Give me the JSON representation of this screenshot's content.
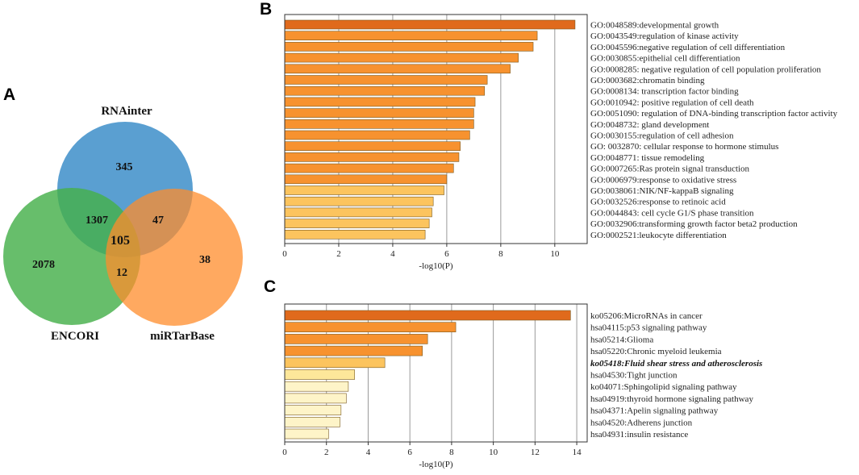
{
  "colors": {
    "rnainter": "#3d8ec9",
    "encori": "#46b04a",
    "mirtarbase": "#ff8c2b",
    "grid": "#9a9a9a",
    "frame": "#333333"
  },
  "panels": {
    "a": "A",
    "b": "B",
    "c": "C"
  },
  "venn": {
    "sets": [
      "RNAinter",
      "ENCORI",
      "miRTarBase"
    ],
    "counts": {
      "rnainter_only": "345",
      "encori_only": "2078",
      "mirtarbase_only": "38",
      "rnainter_encori": "1307",
      "rnainter_mirtarbase": "47",
      "encori_mirtarbase": "12",
      "all_three": "105"
    }
  },
  "chart_data": [
    {
      "type": "bar",
      "orientation": "horizontal",
      "panel": "B",
      "xlabel": "-log10(P)",
      "xlim": [
        0,
        11.2
      ],
      "xticks": [
        0,
        2,
        4,
        6,
        8,
        10
      ],
      "categories": [
        "GO:0048589:developmental growth",
        "GO:0043549:regulation of kinase activity",
        "GO:0045596:negative regulation of cell differentiation",
        "GO:0030855:epithelial cell differentiation",
        "GO:0008285: negative regulation of cell population proliferation",
        "GO:0003682:chromatin binding",
        "GO:0008134: transcription factor binding",
        "GO:0010942: positive regulation of cell death",
        "GO:0051090: regulation of DNA-binding transcription factor activity",
        "GO:0048732: gland development",
        "GO:0030155:regulation of cell adhesion",
        "GO: 0032870: cellular response to hormone stimulus",
        "GO:0048771: tissue remodeling",
        "GO:0007265:Ras protein signal transduction",
        "GO:0006979:response to oxidative stress",
        "GO:0038061:NIK/NF-kappaB signaling",
        "GO:0032526:response to retinoic acid",
        "GO:0044843: cell cycle G1/S phase transition",
        "GO:0032906:transforming growth factor beta2 production",
        "GO:0002521:leukocyte differentiation"
      ],
      "values": [
        10.75,
        9.35,
        9.2,
        8.65,
        8.35,
        7.5,
        7.4,
        7.05,
        7.0,
        7.0,
        6.85,
        6.5,
        6.45,
        6.25,
        6.0,
        5.9,
        5.5,
        5.45,
        5.35,
        5.2
      ],
      "colors": [
        "#e06a1c",
        "#f7922f",
        "#f7922f",
        "#f7922f",
        "#f7922f",
        "#f7922f",
        "#f7922f",
        "#f7922f",
        "#f7922f",
        "#f7922f",
        "#f7922f",
        "#f7922f",
        "#f7922f",
        "#f7922f",
        "#f7922f",
        "#fcc45e",
        "#fcc45e",
        "#fcc45e",
        "#fcc45e",
        "#fcc45e"
      ]
    },
    {
      "type": "bar",
      "orientation": "horizontal",
      "panel": "C",
      "xlabel": "-log10(P)",
      "xlim": [
        0,
        14.5
      ],
      "xticks": [
        0,
        2,
        4,
        6,
        8,
        10,
        12,
        14
      ],
      "categories": [
        "ko05206:MicroRNAs in cancer",
        "hsa04115:p53 signaling pathway",
        "hsa05214:Glioma",
        "hsa05220:Chronic myeloid leukemia",
        "ko05418:Fluid shear stress and atherosclerosis",
        "hsa04530:Tight junction",
        "ko04071:Sphingolipid signaling pathway",
        "hsa04919:thyroid hormone signaling pathway",
        "hsa04371:Apelin signaling pathway",
        "hsa04520:Adherens junction",
        "hsa04931:insulin resistance"
      ],
      "emphasized": [
        4
      ],
      "values": [
        13.7,
        8.2,
        6.85,
        6.6,
        4.8,
        3.35,
        3.05,
        2.95,
        2.7,
        2.65,
        2.1
      ],
      "colors": [
        "#e06a1c",
        "#f7922f",
        "#f7922f",
        "#f7922f",
        "#fcc45e",
        "#fde79a",
        "#fef4c8",
        "#fef4c8",
        "#fef4c8",
        "#fef4c8",
        "#fef4c8"
      ]
    }
  ]
}
